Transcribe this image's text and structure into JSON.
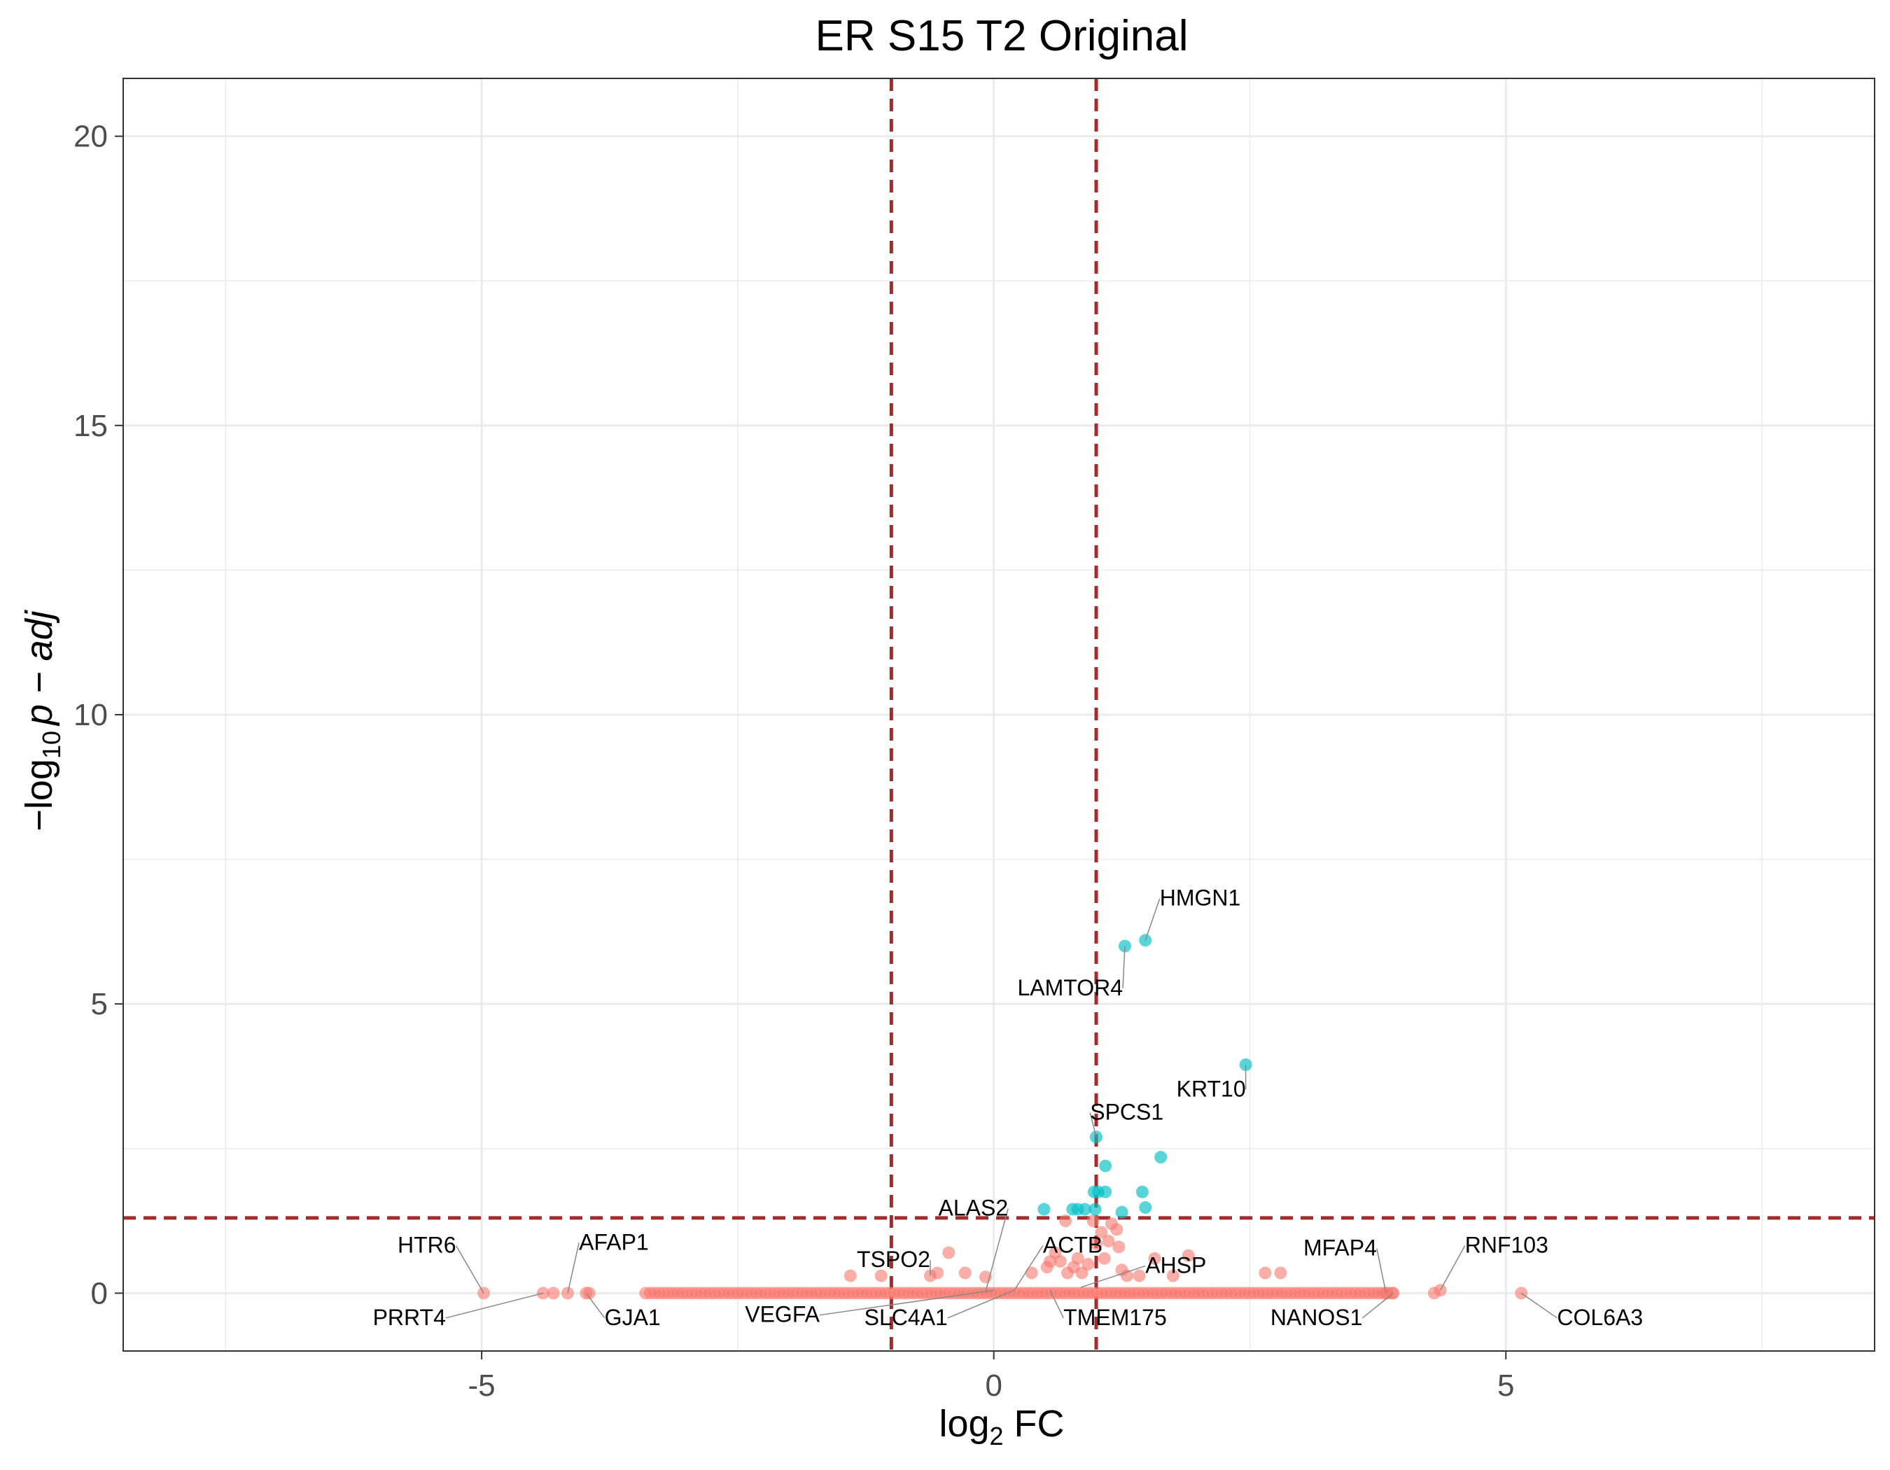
{
  "chart_data": {
    "type": "scatter",
    "title": "ER S15 T2 Original",
    "xlabel": {
      "base": "log",
      "sub": "2",
      "rest": " FC"
    },
    "ylabel": {
      "minus": "−",
      "base": "log",
      "sub": "10",
      "italic": "p − adj"
    },
    "xlim": [
      -8.5,
      8.6
    ],
    "ylim": [
      -1.0,
      21.0
    ],
    "x_ticks": [
      -5,
      0,
      5
    ],
    "x_tick_labels": [
      "-5",
      "0",
      "5"
    ],
    "y_ticks": [
      0,
      5,
      10,
      15,
      20
    ],
    "y_tick_labels": [
      "0",
      "5",
      "10",
      "15",
      "20"
    ],
    "grid": true,
    "thresholds": {
      "log2fc": [
        -1.0,
        1.0
      ],
      "neglog10_padj": 1.3,
      "color": "#a52a2a"
    },
    "colors": {
      "significant": "#00bfc4",
      "not_significant": "#f8766d"
    },
    "significant_points": [
      {
        "x": 1.48,
        "y": 6.1
      },
      {
        "x": 1.28,
        "y": 6.0
      },
      {
        "x": 2.46,
        "y": 3.95
      },
      {
        "x": 1.63,
        "y": 2.35
      },
      {
        "x": 1.0,
        "y": 2.7
      },
      {
        "x": 1.09,
        "y": 2.2
      },
      {
        "x": 1.02,
        "y": 1.75
      },
      {
        "x": 1.09,
        "y": 1.75
      },
      {
        "x": 1.45,
        "y": 1.75
      },
      {
        "x": 0.98,
        "y": 1.75
      },
      {
        "x": 0.49,
        "y": 1.45
      },
      {
        "x": 0.77,
        "y": 1.45
      },
      {
        "x": 0.82,
        "y": 1.45
      },
      {
        "x": 0.89,
        "y": 1.45
      },
      {
        "x": 0.99,
        "y": 1.45
      },
      {
        "x": 1.25,
        "y": 1.4
      },
      {
        "x": 1.48,
        "y": 1.48
      }
    ],
    "nonsig_points": [
      {
        "x": -4.98,
        "y": 0.0
      },
      {
        "x": -4.4,
        "y": 0.0
      },
      {
        "x": -4.3,
        "y": 0.0
      },
      {
        "x": -4.16,
        "y": 0.0
      },
      {
        "x": -3.98,
        "y": 0.0
      },
      {
        "x": -3.95,
        "y": 0.0
      },
      {
        "x": -1.4,
        "y": 0.3
      },
      {
        "x": -1.1,
        "y": 0.3
      },
      {
        "x": -0.55,
        "y": 0.35
      },
      {
        "x": -0.62,
        "y": 0.3
      },
      {
        "x": -0.44,
        "y": 0.7
      },
      {
        "x": -0.28,
        "y": 0.35
      },
      {
        "x": -0.08,
        "y": 0.28
      },
      {
        "x": 0.37,
        "y": 0.35
      },
      {
        "x": 0.52,
        "y": 0.45
      },
      {
        "x": 0.55,
        "y": 0.55
      },
      {
        "x": 0.6,
        "y": 0.7
      },
      {
        "x": 0.65,
        "y": 0.55
      },
      {
        "x": 0.7,
        "y": 1.25
      },
      {
        "x": 0.72,
        "y": 0.35
      },
      {
        "x": 0.78,
        "y": 0.45
      },
      {
        "x": 0.82,
        "y": 0.6
      },
      {
        "x": 0.86,
        "y": 0.35
      },
      {
        "x": 0.92,
        "y": 0.5
      },
      {
        "x": 0.97,
        "y": 1.25
      },
      {
        "x": 1.0,
        "y": 0.85
      },
      {
        "x": 1.05,
        "y": 1.05
      },
      {
        "x": 1.08,
        "y": 0.6
      },
      {
        "x": 1.12,
        "y": 0.9
      },
      {
        "x": 1.15,
        "y": 1.2
      },
      {
        "x": 1.2,
        "y": 1.1
      },
      {
        "x": 1.22,
        "y": 0.8
      },
      {
        "x": 1.25,
        "y": 0.4
      },
      {
        "x": 1.3,
        "y": 0.3
      },
      {
        "x": 1.42,
        "y": 0.3
      },
      {
        "x": 1.57,
        "y": 0.6
      },
      {
        "x": 1.9,
        "y": 0.65
      },
      {
        "x": 1.75,
        "y": 0.3
      },
      {
        "x": 2.65,
        "y": 0.35
      },
      {
        "x": 2.8,
        "y": 0.35
      },
      {
        "x": 3.83,
        "y": 0.0
      },
      {
        "x": 3.9,
        "y": 0.0
      },
      {
        "x": 4.3,
        "y": 0.0
      },
      {
        "x": 4.36,
        "y": 0.05
      },
      {
        "x": 5.15,
        "y": 0.0
      }
    ],
    "baseline_band": {
      "y": 0.0,
      "x_from": -3.4,
      "x_to": 3.9
    },
    "labels": [
      {
        "text": "HMGN1",
        "x": 1.48,
        "y": 6.1,
        "lx": 1.62,
        "ly": 6.7,
        "anchor": "start"
      },
      {
        "text": "LAMTOR4",
        "x": 1.28,
        "y": 6.0,
        "lx": 1.26,
        "ly": 5.15,
        "anchor": "end"
      },
      {
        "text": "KRT10",
        "x": 2.46,
        "y": 3.95,
        "lx": 2.46,
        "ly": 3.4,
        "anchor": "end"
      },
      {
        "text": "SPCS1",
        "x": 1.0,
        "y": 2.7,
        "lx": 0.94,
        "ly": 3.0,
        "anchor": "start"
      },
      {
        "text": "ALAS2",
        "x": -0.08,
        "y": 0.03,
        "lx": 0.14,
        "ly": 1.34,
        "anchor": "end"
      },
      {
        "text": "HTR6",
        "x": -4.98,
        "y": 0.0,
        "lx": -5.25,
        "ly": 0.7,
        "anchor": "end"
      },
      {
        "text": "AFAP1",
        "x": -4.16,
        "y": 0.0,
        "lx": -4.05,
        "ly": 0.75,
        "anchor": "start"
      },
      {
        "text": "PRRT4",
        "x": -4.4,
        "y": 0.0,
        "lx": -5.35,
        "ly": -0.55,
        "anchor": "end"
      },
      {
        "text": "GJA1",
        "x": -3.98,
        "y": 0.0,
        "lx": -3.8,
        "ly": -0.55,
        "anchor": "start"
      },
      {
        "text": "TSPO2",
        "x": -0.62,
        "y": 0.3,
        "lx": -0.62,
        "ly": 0.45,
        "anchor": "end"
      },
      {
        "text": "VEGFA",
        "x": 0.0,
        "y": 0.05,
        "lx": -1.7,
        "ly": -0.5,
        "anchor": "end"
      },
      {
        "text": "SLC4A1",
        "x": 0.2,
        "y": 0.05,
        "lx": -0.45,
        "ly": -0.55,
        "anchor": "end"
      },
      {
        "text": "ACTB",
        "x": 0.2,
        "y": 0.05,
        "lx": 0.48,
        "ly": 0.7,
        "anchor": "start"
      },
      {
        "text": "TMEM175",
        "x": 0.55,
        "y": 0.05,
        "lx": 0.68,
        "ly": -0.55,
        "anchor": "start"
      },
      {
        "text": "AHSP",
        "x": 0.85,
        "y": 0.1,
        "lx": 1.48,
        "ly": 0.35,
        "anchor": "start"
      },
      {
        "text": "MFAP4",
        "x": 3.83,
        "y": 0.0,
        "lx": 3.74,
        "ly": 0.65,
        "anchor": "end"
      },
      {
        "text": "RNF103",
        "x": 4.36,
        "y": 0.05,
        "lx": 4.6,
        "ly": 0.7,
        "anchor": "start"
      },
      {
        "text": "NANOS1",
        "x": 3.9,
        "y": 0.0,
        "lx": 3.6,
        "ly": -0.55,
        "anchor": "end"
      },
      {
        "text": "COL6A3",
        "x": 5.15,
        "y": 0.0,
        "lx": 5.5,
        "ly": -0.55,
        "anchor": "start"
      }
    ]
  }
}
